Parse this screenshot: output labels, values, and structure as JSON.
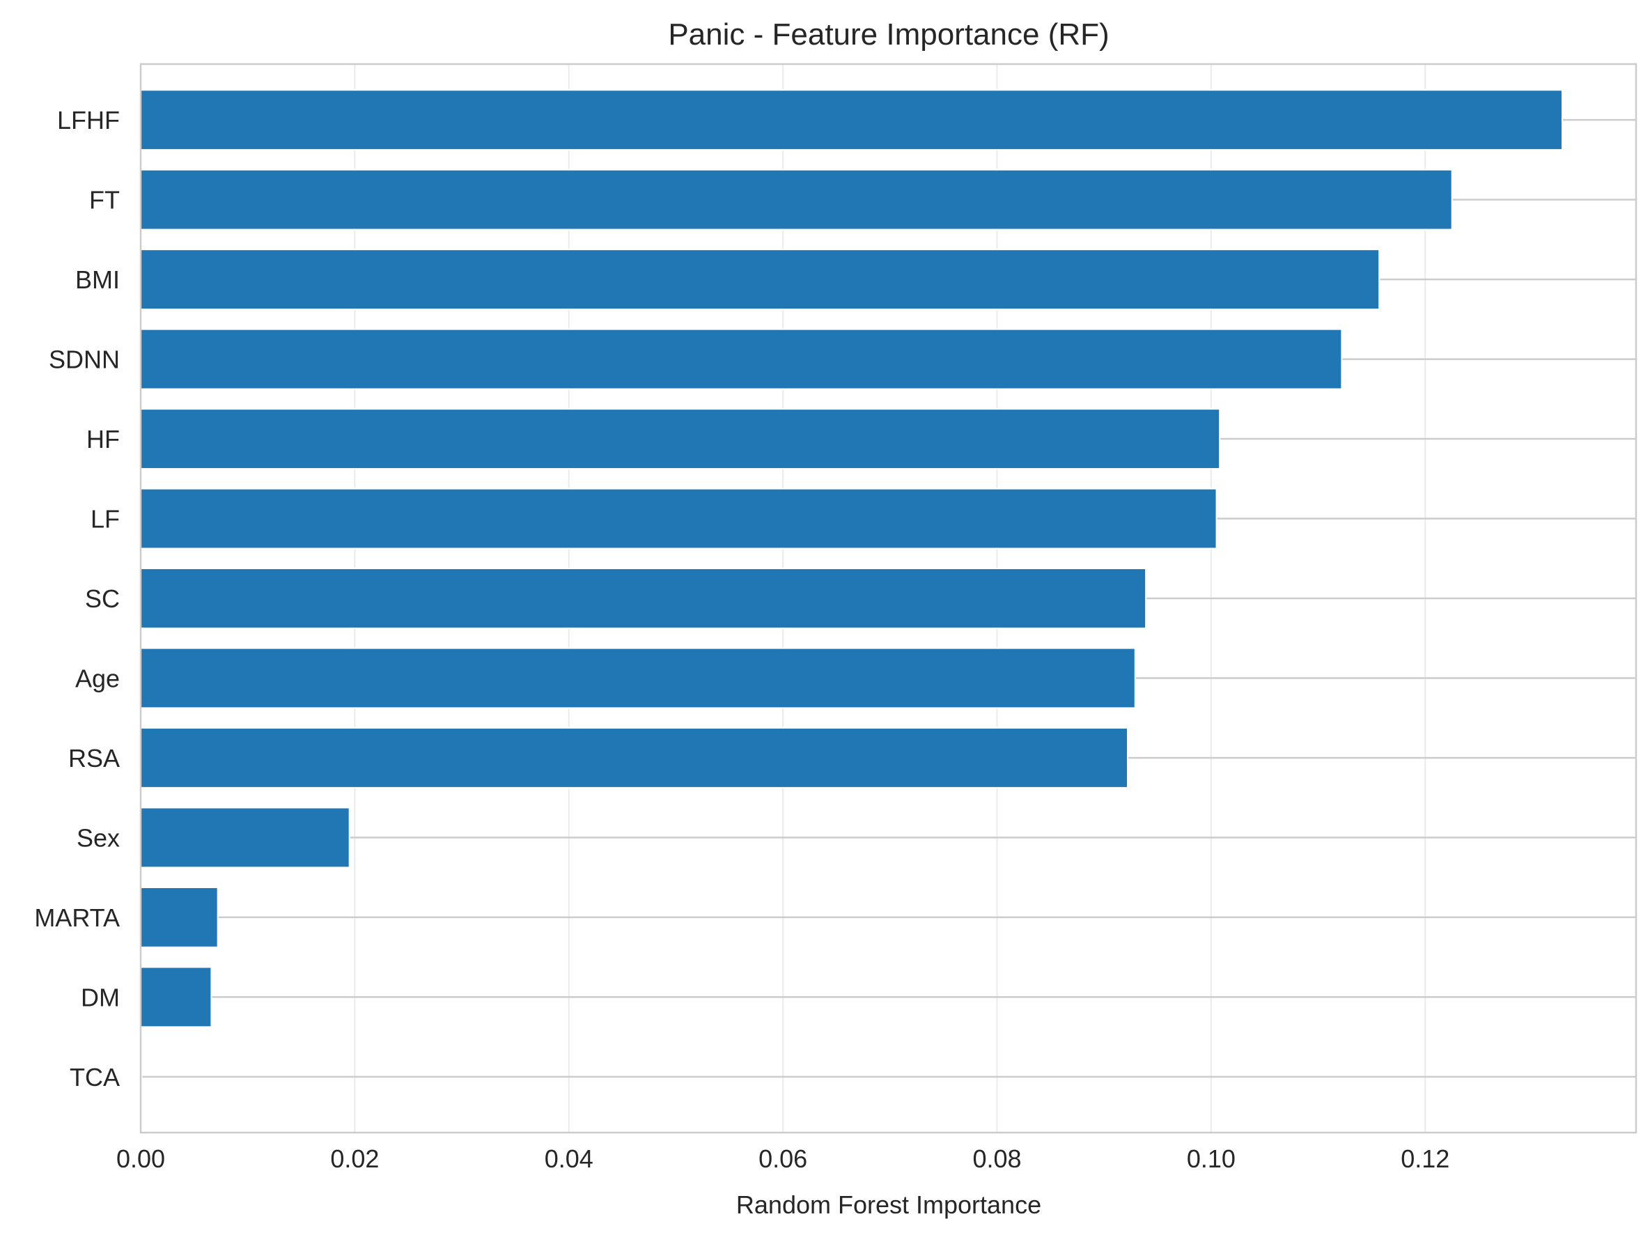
{
  "chart_data": {
    "type": "bar",
    "orientation": "horizontal",
    "title": "Panic - Feature Importance (RF)",
    "xlabel": "Random Forest Importance",
    "ylabel": "",
    "categories": [
      "LFHF",
      "FT",
      "BMI",
      "SDNN",
      "HF",
      "LF",
      "SC",
      "Age",
      "RSA",
      "Sex",
      "MARTA",
      "DM",
      "TCA"
    ],
    "values": [
      0.1328,
      0.1225,
      0.1157,
      0.1122,
      0.1008,
      0.1005,
      0.0939,
      0.0929,
      0.0922,
      0.0195,
      0.0072,
      0.0066,
      0.0001
    ],
    "xlim": [
      0,
      0.1397
    ],
    "xticks": [
      0.0,
      0.02,
      0.04,
      0.06,
      0.08,
      0.1,
      0.12
    ],
    "xtick_labels": [
      "0.00",
      "0.02",
      "0.04",
      "0.06",
      "0.08",
      "0.10",
      "0.12"
    ],
    "grid": true,
    "bar_color": "#2077b4",
    "grid_color": "#cccccc",
    "frame_color": "#cccccc"
  }
}
